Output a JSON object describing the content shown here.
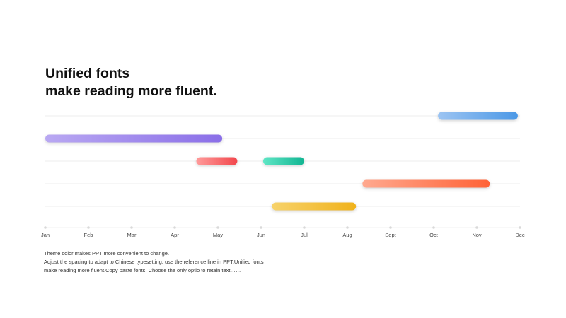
{
  "title": {
    "line1": "Unified fonts",
    "line2": "make reading more fluent."
  },
  "caption": {
    "line1": "Theme  color makes PPT more convenient to change.",
    "line2": "Adjust the spacing to adapt to Chinese typesetting, use the reference line in PPT.Unified fonts",
    "line3": "make reading more fluent.Copy paste fonts. Choose the only optio to retain text……"
  },
  "chart_data": {
    "type": "gantt",
    "x_ticks": [
      "Jan",
      "Feb",
      "Mar",
      "Apr",
      "May",
      "Jun",
      "Jul",
      "Aug",
      "Sept",
      "Oct",
      "Nov",
      "Dec"
    ],
    "xlim": [
      0,
      11
    ],
    "grid": true,
    "rows": [
      {
        "bars": [
          {
            "start": 9.1,
            "end": 10.95,
            "color_start": "#9cc4f2",
            "color_end": "#4b98e6"
          }
        ]
      },
      {
        "bars": [
          {
            "start": 0.0,
            "end": 4.1,
            "color_start": "#b9a8f2",
            "color_end": "#8a6ee8"
          }
        ]
      },
      {
        "bars": [
          {
            "start": 3.5,
            "end": 4.45,
            "color_start": "#ff9a9a",
            "color_end": "#f2474c"
          },
          {
            "start": 5.05,
            "end": 6.0,
            "color_start": "#5fe6c5",
            "color_end": "#12b592"
          }
        ]
      },
      {
        "bars": [
          {
            "start": 7.35,
            "end": 10.3,
            "color_start": "#ffa98f",
            "color_end": "#ff6236"
          }
        ]
      },
      {
        "bars": [
          {
            "start": 5.25,
            "end": 7.2,
            "color_start": "#f7d26a",
            "color_end": "#f0b21c"
          }
        ]
      }
    ]
  }
}
